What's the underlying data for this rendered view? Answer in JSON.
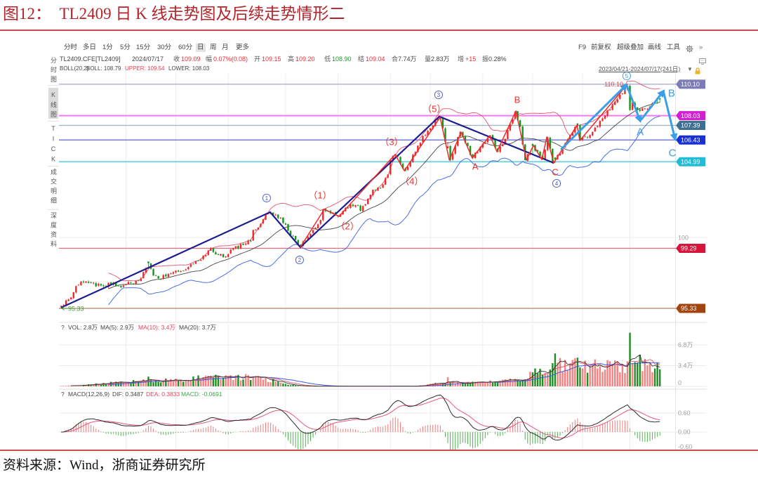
{
  "figure": {
    "title": "图12：  TL2409 日 K 线走势图及后续走势情形二",
    "source": "资料来源：Wind，浙商证券研究所"
  },
  "toolbar": {
    "periods": [
      "分时",
      "多日",
      "1分",
      "5分",
      "15分",
      "30分",
      "60分",
      "日",
      "周",
      "月",
      "更多"
    ],
    "active_period": "日",
    "right": [
      "F9",
      "前复权",
      "超级叠加",
      "画线",
      "工具"
    ],
    "gear_icon": "gear-icon",
    "more_label": "»",
    "date_range": "2023/04/21-2024/07/17(241日)",
    "dropdown_label": "▼"
  },
  "sidebar": [
    {
      "label": "分时图",
      "active": false
    },
    {
      "label": "K线图",
      "active": true
    },
    {
      "label": "TICK",
      "active": false
    },
    {
      "label": "成交明细",
      "active": false
    },
    {
      "label": "深度资料",
      "active": false
    }
  ],
  "quote": {
    "symbol": "TL2409.CFE[TL2409]",
    "date": "2024/07/17",
    "items": [
      {
        "label": "收",
        "value": "109.09",
        "tone": "up"
      },
      {
        "label": "幅",
        "value": "0.07%(0.08)",
        "tone": "up"
      },
      {
        "label": "开",
        "value": "109.15",
        "tone": "up"
      },
      {
        "label": "高",
        "value": "109.20",
        "tone": "up"
      },
      {
        "label": "低",
        "value": "108.90",
        "tone": "down"
      },
      {
        "label": "结",
        "value": "109.04",
        "tone": "up"
      },
      {
        "label": "合",
        "value": "7.74万",
        "tone": "neutral"
      },
      {
        "label": "量",
        "value": "2.83万",
        "tone": "neutral"
      },
      {
        "label": "增",
        "value": "+15",
        "tone": "up"
      },
      {
        "label": "振",
        "value": "0.28%",
        "tone": "neutral"
      }
    ]
  },
  "boll": {
    "name": "BOLL(20,2)",
    "mid": "BOLL: 108.79",
    "upper": "UPPER: 109.54",
    "lower": "LOWER: 108.03"
  },
  "vol_panel": {
    "help": "?",
    "vol": "VOL: 2.8万",
    "ma5": "MA(5): 2.9万",
    "ma10": "MA(10): 3.4万",
    "ma20": "MA(20): 3.7万",
    "axis": [
      {
        "value": 6.8,
        "label": "6.8万"
      },
      {
        "value": 3.4,
        "label": "3.4万"
      },
      {
        "value": 0,
        "label": "0"
      }
    ]
  },
  "macd_panel": {
    "help": "?",
    "name": "MACD(12,26,9)",
    "dif": "DIF: 0.3487",
    "dea": "DEA: 0.3833",
    "macd": "MACD: -0.0691",
    "axis": [
      {
        "value": 0.6,
        "label": "0.60"
      },
      {
        "value": 0,
        "label": "0.00"
      },
      {
        "value": -0.6,
        "label": "-0.60"
      }
    ]
  },
  "chart_data": {
    "type": "candlestick",
    "title": "TL2409 日 K 线走势图及后续走势情形二",
    "symbol": "TL2409.CFE",
    "date_range": [
      "2023/04/21",
      "2024/07/17"
    ],
    "bars": 241,
    "ylim": [
      94.59,
      110.79
    ],
    "y_ticks": [
      {
        "value": 100,
        "label": "100"
      }
    ],
    "grid_bars": [
      26,
      46,
      67,
      90,
      111,
      132,
      148,
      169,
      189,
      209,
      228
    ],
    "levels": [
      {
        "price": 110.1,
        "label": "110.10",
        "line_color": "#a6a6cc",
        "tag_color": "#7c7cb6",
        "line_width": 1.2
      },
      {
        "price": 108.03,
        "label": "108.03",
        "line_color": "#f07af0",
        "tag_color": "#d41ed4",
        "line_width": 2
      },
      {
        "price": 107.39,
        "label": "107.39",
        "line_color": "#9cb4c4",
        "tag_color": "#3e7094",
        "line_width": 1.2
      },
      {
        "price": 106.43,
        "label": "106.43",
        "line_color": "#4654c4",
        "tag_color": "#1630d6",
        "line_width": 1.2
      },
      {
        "price": 104.99,
        "label": "104.99",
        "line_color": "#74d6e2",
        "tag_color": "#22bcd6",
        "line_width": 2
      },
      {
        "price": 99.29,
        "label": "99.29",
        "line_color": "#e06a7c",
        "tag_color": "#d4163c",
        "line_width": 1.2
      },
      {
        "price": 95.33,
        "label": "95.33",
        "line_color": "#b88068",
        "tag_color": "#a2440f",
        "line_width": 1.2
      }
    ],
    "close_path": [
      [
        0,
        95.5
      ],
      [
        4,
        96.05
      ],
      [
        6,
        96.8
      ],
      [
        10,
        97.1
      ],
      [
        12,
        97.0
      ],
      [
        17,
        96.8
      ],
      [
        21,
        97.05
      ],
      [
        22,
        96.8
      ],
      [
        26,
        96.9
      ],
      [
        30,
        97.15
      ],
      [
        32,
        97.3
      ],
      [
        35,
        98.3
      ],
      [
        37,
        97.5
      ],
      [
        39,
        97.3
      ],
      [
        43,
        97.6
      ],
      [
        47,
        97.75
      ],
      [
        51,
        98.05
      ],
      [
        54,
        98.45
      ],
      [
        58,
        98.85
      ],
      [
        60,
        99.3
      ],
      [
        63,
        98.85
      ],
      [
        66,
        98.75
      ],
      [
        69,
        99.3
      ],
      [
        73,
        99.5
      ],
      [
        76,
        99.75
      ],
      [
        77,
        100.5
      ],
      [
        80,
        100.9
      ],
      [
        82,
        101.5
      ],
      [
        84,
        101.65
      ],
      [
        88,
        101.3
      ],
      [
        90,
        100.85
      ],
      [
        92,
        100.15
      ],
      [
        96,
        99.4
      ],
      [
        98,
        99.8
      ],
      [
        101,
        100.5
      ],
      [
        104,
        101.15
      ],
      [
        105,
        101.85
      ],
      [
        107,
        101.75
      ],
      [
        110,
        101.5
      ],
      [
        111,
        101.4
      ],
      [
        113,
        101.75
      ],
      [
        116,
        102.2
      ],
      [
        119,
        102.1
      ],
      [
        120,
        101.75
      ],
      [
        123,
        102.55
      ],
      [
        125,
        103.15
      ],
      [
        127,
        103.3
      ],
      [
        129,
        103.5
      ],
      [
        131,
        104.15
      ],
      [
        132,
        105.1
      ],
      [
        134,
        105.45
      ],
      [
        135,
        105.35
      ],
      [
        136,
        104.85
      ],
      [
        138,
        104.4
      ],
      [
        140,
        105.0
      ],
      [
        141,
        105.45
      ],
      [
        143,
        106.05
      ],
      [
        145,
        106.7
      ],
      [
        148,
        107.2
      ],
      [
        150,
        107.75
      ],
      [
        152,
        107.95
      ],
      [
        153,
        107.2
      ],
      [
        154,
        106.3
      ],
      [
        155,
        106.0
      ],
      [
        156,
        105.1
      ],
      [
        158,
        106.05
      ],
      [
        160,
        106.95
      ],
      [
        162,
        106.25
      ],
      [
        165,
        105.25
      ],
      [
        168,
        105.95
      ],
      [
        172,
        106.7
      ],
      [
        175,
        105.65
      ],
      [
        178,
        106.5
      ],
      [
        182,
        108.3
      ],
      [
        184,
        107.3
      ],
      [
        186,
        105.1
      ],
      [
        189,
        106.05
      ],
      [
        193,
        105.15
      ],
      [
        195,
        106.6
      ],
      [
        197,
        104.9
      ],
      [
        201,
        105.9
      ],
      [
        206,
        107.3
      ],
      [
        207,
        107.4
      ],
      [
        208,
        106.4
      ],
      [
        213,
        106.95
      ],
      [
        217,
        107.85
      ],
      [
        222,
        108.95
      ],
      [
        225,
        109.5
      ],
      [
        227,
        110.0
      ],
      [
        228,
        108.4
      ],
      [
        229,
        108.9
      ],
      [
        230,
        108.6
      ],
      [
        232,
        108.35
      ],
      [
        234,
        108.5
      ],
      [
        237,
        108.85
      ],
      [
        240,
        109.09
      ]
    ],
    "high_marker": {
      "bar": 227,
      "price": 110.1,
      "label": "110.10",
      "color": "#c84b4b"
    },
    "low_marker": {
      "bar": 0,
      "price": 95.33,
      "label": "95.33",
      "color": "#3a9a3a"
    },
    "volume_unit": "万",
    "volume_path": [
      [
        0,
        0.1
      ],
      [
        6,
        0.15
      ],
      [
        12,
        0.3
      ],
      [
        18,
        0.5
      ],
      [
        25,
        0.7
      ],
      [
        35,
        0.9
      ],
      [
        45,
        1.0
      ],
      [
        55,
        1.3
      ],
      [
        65,
        1.4
      ],
      [
        75,
        1.5
      ],
      [
        80,
        1.3
      ],
      [
        84,
        1.0
      ],
      [
        88,
        0.6
      ],
      [
        92,
        0.25
      ],
      [
        95,
        0.08
      ],
      [
        100,
        0.02
      ],
      [
        142,
        0.02
      ],
      [
        144,
        0.15
      ],
      [
        150,
        0.5
      ],
      [
        155,
        0.6
      ],
      [
        165,
        0.6
      ],
      [
        175,
        0.8
      ],
      [
        180,
        1.1
      ],
      [
        186,
        1.5
      ],
      [
        190,
        2.2
      ],
      [
        194,
        2.8
      ],
      [
        197,
        3.4
      ],
      [
        200,
        3.6
      ],
      [
        205,
        3.8
      ],
      [
        210,
        3.3
      ],
      [
        215,
        3.5
      ],
      [
        220,
        3.2
      ],
      [
        226,
        3.1
      ],
      [
        229,
        4.2
      ],
      [
        233,
        3.8
      ],
      [
        236,
        3.0
      ],
      [
        240,
        2.8
      ]
    ],
    "volume_spikes": [
      {
        "bar": 35,
        "vol": 1.6,
        "dir": "down"
      },
      {
        "bar": 55,
        "vol": 1.8,
        "dir": "down"
      },
      {
        "bar": 62,
        "vol": 1.9,
        "dir": "down"
      },
      {
        "bar": 155,
        "vol": 1.5,
        "dir": "up"
      },
      {
        "bar": 189,
        "vol": 2.3,
        "dir": "down"
      },
      {
        "bar": 197,
        "vol": 3.8,
        "dir": "down"
      },
      {
        "bar": 198,
        "vol": 5.4,
        "dir": "down"
      },
      {
        "bar": 207,
        "vol": 4.7,
        "dir": "down"
      },
      {
        "bar": 219,
        "vol": 4.3,
        "dir": "up"
      },
      {
        "bar": 228,
        "vol": 8.8,
        "dir": "down"
      },
      {
        "bar": 232,
        "vol": 5.2,
        "dir": "down"
      },
      {
        "bar": 239,
        "vol": 3.9,
        "dir": "down"
      },
      {
        "bar": 240,
        "vol": 2.8
      }
    ],
    "colors": {
      "up": "#ee2a2a",
      "down": "#14961e",
      "boll_mid": "#474747",
      "boll_upper": "#e45468",
      "boll_lower": "#4a6fe6",
      "vol_up": "#f38383",
      "vol_down": "#1f8f24",
      "ma5": "#333333",
      "ma10": "#e4506a",
      "ma20": "#3a5be0",
      "dif": "#2a2a2a",
      "dea": "#e4587a",
      "macd_up": "#f07c7c",
      "macd_down": "#52b152"
    },
    "wave_lines": [
      {
        "name": "primary",
        "color": "#1d1d8f",
        "width": 2.2,
        "points": [
          [
            0,
            95.38
          ],
          [
            83.8,
            101.67
          ],
          [
            95.9,
            99.36
          ],
          [
            151.6,
            107.97
          ],
          [
            197.5,
            104.91
          ]
        ]
      },
      {
        "name": "sub",
        "color": "#f02a2a",
        "width": 1.5,
        "points": [
          [
            95.9,
            99.36
          ],
          [
            105.5,
            101.86
          ],
          [
            111.4,
            101.39
          ],
          [
            133.9,
            105.47
          ],
          [
            137.6,
            104.4
          ],
          [
            151.9,
            107.92
          ],
          [
            155.6,
            105.1
          ],
          [
            160.3,
            106.95
          ],
          [
            164.8,
            105.24
          ],
          [
            171.9,
            106.72
          ],
          [
            174.7,
            105.65
          ],
          [
            182.3,
            108.34
          ],
          [
            186.5,
            105.1
          ],
          [
            189.3,
            106.07
          ],
          [
            192.7,
            105.14
          ],
          [
            194.7,
            106.63
          ],
          [
            197.5,
            104.91
          ],
          [
            206.8,
            107.41
          ],
          [
            207.9,
            106.39
          ],
          [
            226.7,
            110.05
          ]
        ]
      }
    ],
    "forecast": {
      "color": "#3a9ee8",
      "width": 3,
      "segments": [
        {
          "from": [
            200.6,
            105.84
          ],
          "to": [
            226.5,
            110.05
          ]
        },
        {
          "from": [
            226.9,
            109.95
          ],
          "to": [
            232.1,
            107.69
          ]
        },
        {
          "from": [
            232.6,
            107.78
          ],
          "to": [
            241.4,
            109.64
          ]
        },
        {
          "from": [
            241.4,
            109.64
          ],
          "to": [
            246.1,
            106.49
          ]
        }
      ]
    },
    "wave_labels": [
      {
        "text": "①",
        "bar": 82.4,
        "price": 102.6,
        "color": "#4a56cc",
        "degree": "primary"
      },
      {
        "text": "②",
        "bar": 95.6,
        "price": 98.52,
        "color": "#4a56cc",
        "degree": "primary"
      },
      {
        "text": "③",
        "bar": 151.3,
        "price": 109.4,
        "color": "#4a56cc",
        "degree": "primary"
      },
      {
        "text": "④",
        "bar": 198.6,
        "price": 103.57,
        "color": "#4a56cc",
        "degree": "primary"
      },
      {
        "text": "⑤",
        "bar": 226.7,
        "price": 110.65,
        "color": "#3a9ee8",
        "degree": "primary"
      },
      {
        "text": "（1）",
        "bar": 103.8,
        "price": 102.78,
        "color": "#ee3030",
        "degree": "sub"
      },
      {
        "text": "（2）",
        "bar": 114.8,
        "price": 100.75,
        "color": "#ee3030",
        "degree": "sub"
      },
      {
        "text": "（3）",
        "bar": 132.5,
        "price": 106.3,
        "color": "#ee3030",
        "degree": "sub"
      },
      {
        "text": "（4）",
        "bar": 140.6,
        "price": 103.71,
        "color": "#ee3030",
        "degree": "sub"
      },
      {
        "text": "（5）",
        "bar": 149.6,
        "price": 108.48,
        "color": "#ee3030",
        "degree": "sub"
      },
      {
        "text": "A",
        "bar": 166.0,
        "price": 104.68,
        "color": "#ee3030",
        "degree": "correction"
      },
      {
        "text": "B",
        "bar": 182.8,
        "price": 109.08,
        "color": "#ee3030",
        "degree": "correction"
      },
      {
        "text": "C",
        "bar": 198.0,
        "price": 104.31,
        "color": "#ee3030",
        "degree": "correction"
      },
      {
        "text": "A",
        "bar": 232.1,
        "price": 107.0,
        "color": "#3a9ee8",
        "degree": "forecast"
      },
      {
        "text": "B",
        "bar": 244.7,
        "price": 109.54,
        "color": "#3a9ee8",
        "degree": "forecast"
      },
      {
        "text": "C",
        "bar": 245.0,
        "price": 105.61,
        "color": "#3a9ee8",
        "degree": "forecast"
      }
    ]
  }
}
